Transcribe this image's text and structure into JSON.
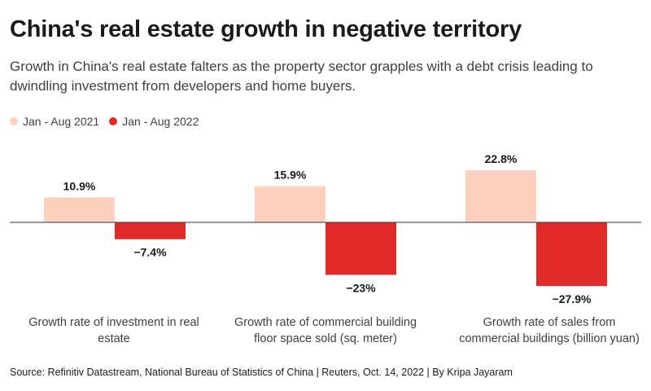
{
  "title": "China's real estate growth in negative territory",
  "subtitle": "Growth in China's real estate  falters as the property sector grapples with a debt crisis leading to dwindling investment from developers and home buyers.",
  "source": "Source: Refinitiv Datastream, National Bureau of Statistics of China | Reuters, Oct. 14, 2022 | By Kripa Jayaram",
  "colors": {
    "series_2021": "#fdd0bd",
    "series_2022": "#df2a27",
    "axis": "#333333"
  },
  "chart_data": {
    "type": "bar",
    "categories": [
      "Growth rate of investment in real estate",
      "Growth rate of commercial building floor space sold (sq. meter)",
      "Growth rate of sales from commercial buildings (billion yuan)"
    ],
    "series": [
      {
        "name": "Jan - Aug 2021",
        "values": [
          10.9,
          15.9,
          22.8
        ],
        "labels": [
          "10.9%",
          "15.9%",
          "22.8%"
        ]
      },
      {
        "name": "Jan - Aug 2022",
        "values": [
          -7.4,
          -23,
          -27.9
        ],
        "labels": [
          "−7.4%",
          "−23%",
          "−27.9%"
        ]
      }
    ],
    "ylim": [
      -30,
      25
    ],
    "grid": false,
    "legend": "top-left",
    "title": "",
    "xlabel": "",
    "ylabel": ""
  }
}
